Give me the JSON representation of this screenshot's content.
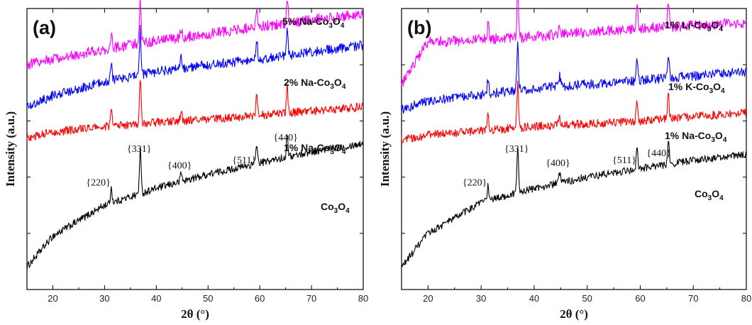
{
  "chart_data": [
    {
      "type": "line",
      "panel_label": "(a)",
      "xlabel": "2θ (°)",
      "ylabel": "Intensity (a.u.)",
      "xlim": [
        15,
        80
      ],
      "xticks": [
        20,
        30,
        40,
        50,
        60,
        70,
        80
      ],
      "ylim": [
        0,
        10
      ],
      "y_ticks_labeled": false,
      "peaks": [
        31.3,
        36.9,
        44.8,
        59.4,
        65.3
      ],
      "series": [
        {
          "name": "Co₃O₄",
          "label_parts": [
            "Co",
            "3",
            "O",
            "4"
          ],
          "color": "#000000",
          "x": [
            15,
            20,
            30,
            40,
            50,
            60,
            70,
            80
          ],
          "y": [
            0.8,
            1.9,
            3.0,
            3.6,
            4.1,
            4.5,
            4.9,
            5.2
          ]
        },
        {
          "name": "1% Na-Co₃O₄",
          "label_parts": [
            "1% Na-Co",
            "3",
            "O",
            "4"
          ],
          "color": "#ff0000",
          "x": [
            15,
            20,
            30,
            40,
            50,
            60,
            70,
            80
          ],
          "y": [
            5.4,
            5.6,
            5.8,
            5.95,
            6.05,
            6.2,
            6.35,
            6.5
          ]
        },
        {
          "name": "2% Na-Co₃O₄",
          "label_parts": [
            "2% Na-Co",
            "3",
            "O",
            "4"
          ],
          "color": "#0000ff",
          "x": [
            15,
            20,
            30,
            40,
            50,
            60,
            70,
            80
          ],
          "y": [
            6.5,
            6.9,
            7.4,
            7.75,
            8.0,
            8.2,
            8.45,
            8.7
          ]
        },
        {
          "name": "5% Na-Co₃O₄",
          "label_parts": [
            "5% Na-Co",
            "3",
            "O",
            "4"
          ],
          "color": "#ff00ff",
          "x": [
            15,
            20,
            30,
            40,
            50,
            60,
            70,
            80
          ],
          "y": [
            8.0,
            8.2,
            8.55,
            8.85,
            9.1,
            9.35,
            9.6,
            9.8
          ]
        }
      ],
      "annotations": [
        {
          "text": "{220}",
          "x": 28.8,
          "y": 3.7
        },
        {
          "text": "{331}",
          "x": 36.7,
          "y": 4.9
        },
        {
          "text": "{400}",
          "x": 44.5,
          "y": 4.3
        },
        {
          "text": "{511}",
          "x": 57.0,
          "y": 4.5
        },
        {
          "text": "{440}",
          "x": 65.0,
          "y": 5.3
        }
      ]
    },
    {
      "type": "line",
      "panel_label": "(b)",
      "xlabel": "2θ (°)",
      "ylabel": "Intensity (a.u.)",
      "xlim": [
        15,
        80
      ],
      "xticks": [
        20,
        30,
        40,
        50,
        60,
        70,
        80
      ],
      "ylim": [
        0,
        10
      ],
      "y_ticks_labeled": false,
      "peaks": [
        31.3,
        36.9,
        44.8,
        59.4,
        65.3
      ],
      "series": [
        {
          "name": "Co₃O₄",
          "label_parts": [
            "Co",
            "3",
            "O",
            "4"
          ],
          "color": "#000000",
          "x": [
            15,
            20,
            30,
            40,
            50,
            60,
            70,
            80
          ],
          "y": [
            0.8,
            2.0,
            3.1,
            3.6,
            4.0,
            4.3,
            4.6,
            4.8
          ]
        },
        {
          "name": "1% Na-Co₃O₄",
          "label_parts": [
            "1% Na-Co",
            "3",
            "O",
            "4"
          ],
          "color": "#ff0000",
          "x": [
            15,
            20,
            30,
            40,
            50,
            60,
            70,
            80
          ],
          "y": [
            5.3,
            5.5,
            5.65,
            5.8,
            5.9,
            6.0,
            6.15,
            6.3
          ]
        },
        {
          "name": "1% K-Co₃O₄",
          "label_parts": [
            "1% K-Co",
            "3",
            "O",
            "4"
          ],
          "color": "#0000ff",
          "x": [
            15,
            20,
            30,
            40,
            50,
            60,
            70,
            80
          ],
          "y": [
            6.4,
            6.7,
            6.95,
            7.15,
            7.3,
            7.45,
            7.6,
            7.75
          ]
        },
        {
          "name": "1% Li-Co₃O₄",
          "label_parts": [
            "1% Li-Co",
            "3",
            "O",
            "4"
          ],
          "color": "#ff00ff",
          "x": [
            15,
            17.5,
            20,
            30,
            40,
            50,
            60,
            70,
            80
          ],
          "y": [
            7.3,
            8.1,
            8.8,
            8.9,
            9.0,
            9.15,
            9.3,
            9.4,
            9.5
          ]
        }
      ],
      "annotations": [
        {
          "text": "{220}",
          "x": 28.8,
          "y": 3.7
        },
        {
          "text": "{331}",
          "x": 36.7,
          "y": 4.9
        },
        {
          "text": "{400}",
          "x": 44.5,
          "y": 4.4
        },
        {
          "text": "{511}",
          "x": 57.0,
          "y": 4.5
        },
        {
          "text": "{440}",
          "x": 63.5,
          "y": 4.75
        }
      ]
    }
  ]
}
